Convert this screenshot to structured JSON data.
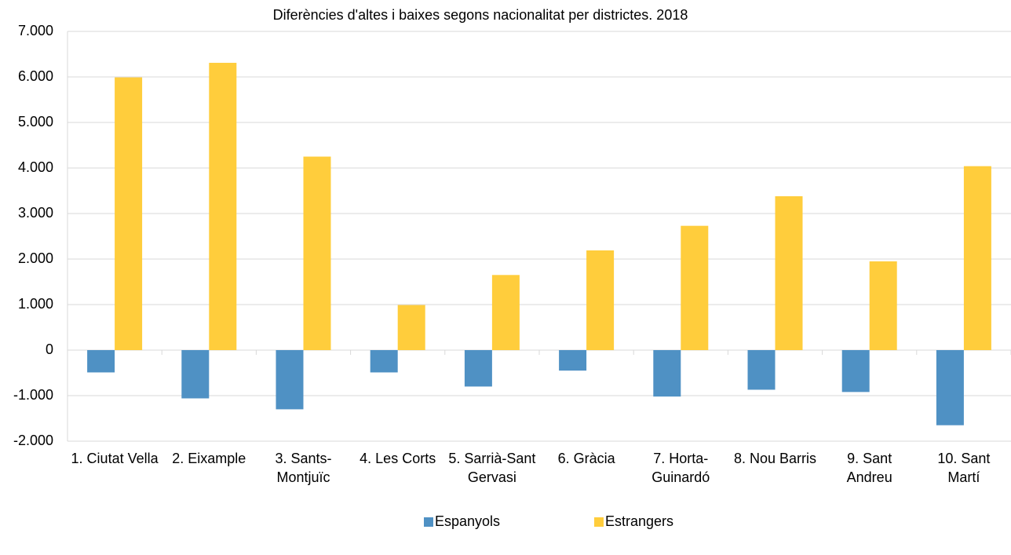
{
  "chart_data": {
    "type": "bar",
    "title": "Diferències d'altes i baixes segons nacionalitat per districtes. 2018",
    "categories": [
      "1. Ciutat Vella",
      "2. Eixample",
      "3. Sants-Montjuïc",
      "4. Les Corts",
      "5. Sarrià-Sant Gervasi",
      "6. Gràcia",
      "7. Horta-Guinardó",
      "8. Nou Barris",
      "9. Sant Andreu",
      "10. Sant Martí"
    ],
    "series": [
      {
        "name": "Espanyols",
        "color": "#4f91c4",
        "values": [
          -490,
          -1060,
          -1300,
          -490,
          -800,
          -450,
          -1020,
          -870,
          -920,
          -1650
        ]
      },
      {
        "name": "Estrangers",
        "color": "#ffcd3c",
        "values": [
          5990,
          6310,
          4250,
          990,
          1650,
          2190,
          2730,
          3380,
          1950,
          4040
        ]
      }
    ],
    "ylim": [
      -2000,
      7000
    ],
    "yticks": [
      {
        "value": -2000,
        "label": "-2.000"
      },
      {
        "value": -1000,
        "label": "-1.000"
      },
      0,
      {
        "value": 1000,
        "label": "1.000"
      },
      {
        "value": 2000,
        "label": "2.000"
      },
      {
        "value": 3000,
        "label": "3.000"
      },
      {
        "value": 4000,
        "label": "4.000"
      },
      {
        "value": 5000,
        "label": "5.000"
      },
      {
        "value": 6000,
        "label": "6.000"
      },
      {
        "value": 7000,
        "label": "7.000"
      }
    ],
    "grid": true,
    "legend": "bottom"
  }
}
